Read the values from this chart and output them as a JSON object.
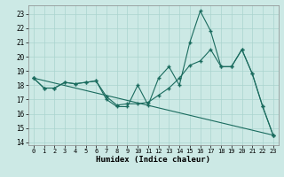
{
  "xlabel": "Humidex (Indice chaleur)",
  "xlim": [
    -0.5,
    23.5
  ],
  "ylim": [
    13.8,
    23.6
  ],
  "yticks": [
    14,
    15,
    16,
    17,
    18,
    19,
    20,
    21,
    22,
    23
  ],
  "xticks": [
    0,
    1,
    2,
    3,
    4,
    5,
    6,
    7,
    8,
    9,
    10,
    11,
    12,
    13,
    14,
    15,
    16,
    17,
    18,
    19,
    20,
    21,
    22,
    23
  ],
  "bg_color": "#cce9e5",
  "line_color": "#1a6b5e",
  "grid_color": "#aad4cf",
  "line1_x": [
    0,
    1,
    2,
    3,
    4,
    5,
    6,
    7,
    8,
    9,
    10,
    11,
    12,
    13,
    14,
    15,
    16,
    17,
    18,
    19,
    20,
    21,
    22,
    23
  ],
  "line1_y": [
    18.5,
    17.8,
    17.8,
    18.2,
    18.1,
    18.2,
    18.3,
    17.0,
    16.5,
    16.5,
    18.0,
    16.6,
    18.5,
    19.3,
    18.0,
    21.0,
    23.2,
    21.8,
    19.3,
    19.3,
    20.5,
    18.8,
    16.5,
    14.5
  ],
  "line2_x": [
    0,
    1,
    2,
    3,
    4,
    5,
    6,
    7,
    8,
    9,
    10,
    11,
    12,
    13,
    14,
    15,
    16,
    17,
    18,
    19,
    20,
    21,
    22,
    23
  ],
  "line2_y": [
    18.5,
    17.8,
    17.8,
    18.2,
    18.1,
    18.2,
    18.3,
    17.2,
    16.6,
    16.7,
    16.7,
    16.8,
    17.3,
    17.8,
    18.5,
    19.4,
    19.7,
    20.5,
    19.3,
    19.3,
    20.5,
    18.8,
    16.5,
    14.5
  ],
  "line3_x": [
    0,
    23
  ],
  "line3_y": [
    18.5,
    14.5
  ]
}
